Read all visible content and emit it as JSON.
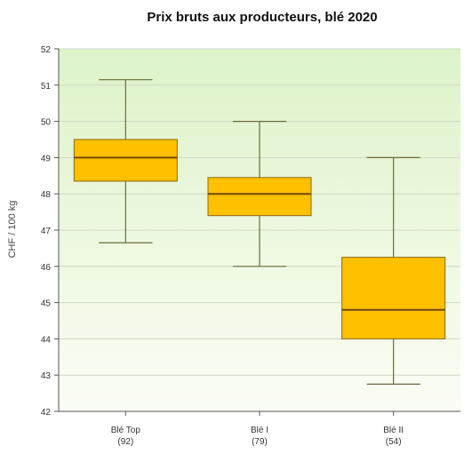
{
  "chart_data": {
    "type": "boxplot",
    "title": "Prix bruts aux producteurs, blé 2020",
    "ylabel": "CHF / 100 kg",
    "xlabel": "",
    "ylim": [
      42,
      52
    ],
    "yticks": [
      42,
      43,
      44,
      45,
      46,
      47,
      48,
      49,
      50,
      51,
      52
    ],
    "grid": true,
    "categories": [
      {
        "label": "Blé Top",
        "count": "(92)",
        "whisker_low": 46.65,
        "q1": 48.35,
        "median": 49.0,
        "q3": 49.5,
        "whisker_high": 51.15
      },
      {
        "label": "Blé I",
        "count": "(79)",
        "whisker_low": 46.0,
        "q1": 47.4,
        "median": 48.0,
        "q3": 48.45,
        "whisker_high": 50.0
      },
      {
        "label": "Blé II",
        "count": "(54)",
        "whisker_low": 42.75,
        "q1": 44.0,
        "median": 44.8,
        "q3": 46.25,
        "whisker_high": 49.0
      }
    ],
    "colors": {
      "box_fill": "#FFC000",
      "box_stroke": "#8a6a10",
      "median": "#6e4a0a",
      "whisker": "#6b6b3a",
      "bg_top": "#ddf3c8",
      "bg_bottom": "#fbfdf6",
      "grid": "#d0d8c4",
      "axis": "#555555"
    }
  }
}
